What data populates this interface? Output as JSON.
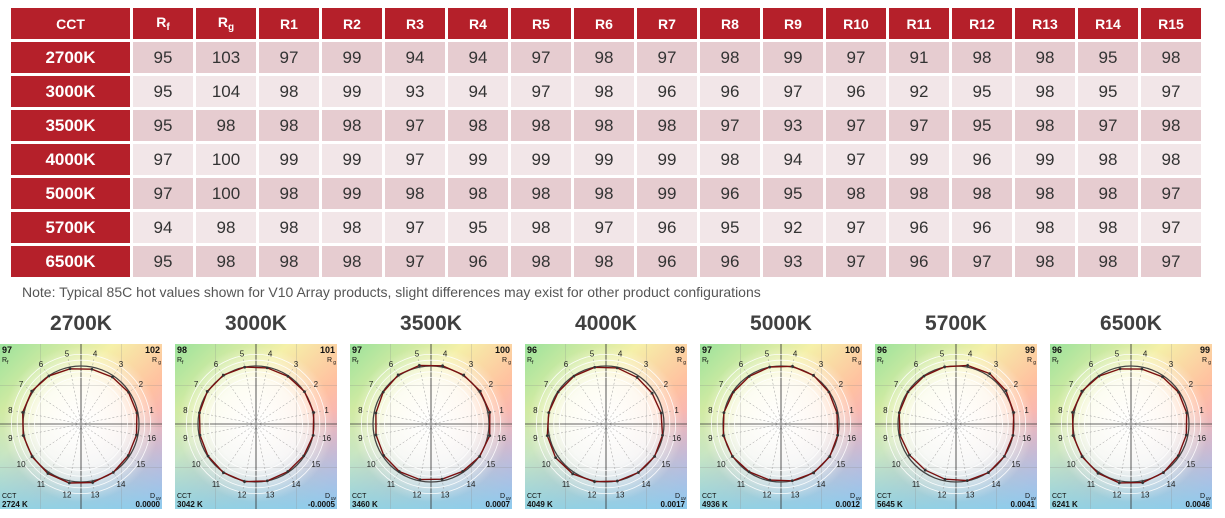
{
  "table": {
    "header": {
      "cct": "CCT",
      "rf_main": "R",
      "rf_sub": "f",
      "rg_main": "R",
      "rg_sub": "g",
      "samples": [
        "R1",
        "R2",
        "R3",
        "R4",
        "R5",
        "R6",
        "R7",
        "R8",
        "R9",
        "R10",
        "R11",
        "R12",
        "R13",
        "R14",
        "R15"
      ]
    },
    "rows": [
      {
        "cct": "2700K",
        "values": [
          "95",
          "103",
          "97",
          "99",
          "94",
          "94",
          "97",
          "98",
          "97",
          "98",
          "99",
          "97",
          "91",
          "98",
          "98",
          "95",
          "98"
        ]
      },
      {
        "cct": "3000K",
        "values": [
          "95",
          "104",
          "98",
          "99",
          "93",
          "94",
          "97",
          "98",
          "96",
          "96",
          "97",
          "96",
          "92",
          "95",
          "98",
          "95",
          "97"
        ]
      },
      {
        "cct": "3500K",
        "values": [
          "95",
          "98",
          "98",
          "98",
          "97",
          "98",
          "98",
          "98",
          "98",
          "97",
          "93",
          "97",
          "97",
          "95",
          "98",
          "97",
          "98"
        ]
      },
      {
        "cct": "4000K",
        "values": [
          "97",
          "100",
          "99",
          "99",
          "97",
          "99",
          "99",
          "99",
          "99",
          "98",
          "94",
          "97",
          "99",
          "96",
          "99",
          "98",
          "98"
        ]
      },
      {
        "cct": "5000K",
        "values": [
          "97",
          "100",
          "98",
          "99",
          "98",
          "98",
          "98",
          "98",
          "99",
          "96",
          "95",
          "98",
          "98",
          "98",
          "98",
          "98",
          "97"
        ]
      },
      {
        "cct": "5700K",
        "values": [
          "94",
          "98",
          "98",
          "98",
          "97",
          "95",
          "98",
          "97",
          "96",
          "95",
          "92",
          "97",
          "96",
          "96",
          "98",
          "98",
          "97"
        ]
      },
      {
        "cct": "6500K",
        "values": [
          "95",
          "98",
          "98",
          "98",
          "97",
          "96",
          "98",
          "98",
          "96",
          "96",
          "93",
          "97",
          "96",
          "97",
          "98",
          "98",
          "97"
        ]
      }
    ]
  },
  "note": "Note:  Typical 85C hot values shown for V10 Array products, slight differences may exist for other product configurations",
  "graphs": {
    "rf_label": "R",
    "rf_label_sub": "f",
    "rg_label": "R",
    "rg_label_sub": "g",
    "cct_label": "CCT",
    "duv_label": "D",
    "duv_label_sub": "uv",
    "hue_bins": [
      "1",
      "2",
      "3",
      "4",
      "5",
      "6",
      "7",
      "8",
      "9",
      "10",
      "11",
      "12",
      "13",
      "14",
      "15",
      "16"
    ],
    "panels": [
      {
        "title": "2700K",
        "rf": "97",
        "rg": "102",
        "cct": "2724 K",
        "duv": "0.0000"
      },
      {
        "title": "3000K",
        "rf": "98",
        "rg": "101",
        "cct": "3042 K",
        "duv": "-0.0005"
      },
      {
        "title": "3500K",
        "rf": "97",
        "rg": "100",
        "cct": "3460 K",
        "duv": "0.0007"
      },
      {
        "title": "4000K",
        "rf": "96",
        "rg": "99",
        "cct": "4049 K",
        "duv": "0.0017"
      },
      {
        "title": "5000K",
        "rf": "97",
        "rg": "100",
        "cct": "4936 K",
        "duv": "0.0012"
      },
      {
        "title": "5700K",
        "rf": "96",
        "rg": "99",
        "cct": "5645 K",
        "duv": "0.0041"
      },
      {
        "title": "6500K",
        "rf": "96",
        "rg": "99",
        "cct": "6241 K",
        "duv": "0.0046"
      }
    ]
  },
  "colors": {
    "header_red": "#b5202a",
    "row_dark": "#e6ccd0",
    "row_light": "#f2e6e8",
    "gamut_line": "#7a1010"
  }
}
